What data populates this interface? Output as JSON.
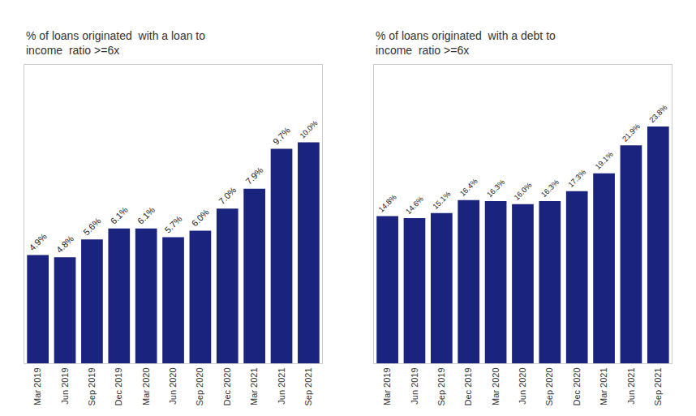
{
  "chart_data": [
    {
      "type": "bar",
      "title": "% of loans originated  with a loan to\nincome  ratio >=6x",
      "categories": [
        "Mar 2019",
        "Jun 2019",
        "Sep 2019",
        "Dec 2019",
        "Mar 2020",
        "Jun 2020",
        "Sep 2020",
        "Dec 2020",
        "Mar 2021",
        "Jun 2021",
        "Sep 2021"
      ],
      "values": [
        4.9,
        4.8,
        5.6,
        6.1,
        6.1,
        5.7,
        6.0,
        7.0,
        7.9,
        9.7,
        10.0
      ],
      "value_labels": [
        "4.9%",
        "4.8%",
        "5.6%",
        "6.1%",
        "6.1%",
        "5.7%",
        "6.0%",
        "7.0%",
        "7.9%",
        "9.7%",
        "10.0%"
      ],
      "color": "#1a237e",
      "ylim": [
        0,
        13.5
      ],
      "grid": false,
      "data_labels": true,
      "tick_labels": "x"
    },
    {
      "type": "bar",
      "title": "% of loans originated  with a debt to\nincome  ratio >=6x",
      "categories": [
        "Mar 2019",
        "Jun 2019",
        "Sep 2019",
        "Dec 2019",
        "Mar 2020",
        "Jun 2020",
        "Sep 2020",
        "Dec 2020",
        "Mar 2021",
        "Jun 2021",
        "Sep 2021"
      ],
      "values": [
        14.8,
        14.6,
        15.1,
        16.4,
        16.3,
        16.0,
        16.3,
        17.3,
        19.1,
        21.9,
        23.8
      ],
      "value_labels": [
        "14.8%",
        "14.6%",
        "15.1%",
        "16.4%",
        "16.3%",
        "16.0%",
        "16.3%",
        "17.3%",
        "19.1%",
        "21.9%",
        "23.8%"
      ],
      "color": "#1a237e",
      "ylim": [
        0,
        30
      ],
      "grid": false,
      "data_labels": true,
      "tick_labels": "x"
    }
  ]
}
